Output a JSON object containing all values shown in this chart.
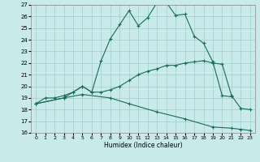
{
  "xlabel": "Humidex (Indice chaleur)",
  "xlim": [
    -0.5,
    23.5
  ],
  "ylim": [
    16,
    27
  ],
  "yticks": [
    16,
    17,
    18,
    19,
    20,
    21,
    22,
    23,
    24,
    25,
    26,
    27
  ],
  "xticks": [
    0,
    1,
    2,
    3,
    4,
    5,
    6,
    7,
    8,
    9,
    10,
    11,
    12,
    13,
    14,
    15,
    16,
    17,
    18,
    19,
    20,
    21,
    22,
    23
  ],
  "bg_color": "#c8eaea",
  "line_color": "#1a6b5a",
  "grid_color": "#a0cccc",
  "s1x": [
    0,
    1,
    2,
    3,
    4,
    5,
    6,
    7,
    8,
    9,
    10,
    11,
    12,
    13,
    14,
    15,
    16,
    17,
    18,
    19,
    20,
    21
  ],
  "s1y": [
    18.5,
    19.0,
    19.0,
    19.2,
    19.5,
    20.0,
    19.5,
    22.2,
    24.1,
    25.3,
    26.5,
    25.2,
    25.9,
    27.2,
    27.2,
    26.1,
    26.2,
    24.3,
    23.7,
    22.1,
    19.2,
    19.1
  ],
  "s2x": [
    0,
    3,
    4,
    5,
    6,
    7,
    8,
    9,
    10,
    11,
    12,
    13,
    14,
    15,
    16,
    17,
    18,
    19,
    20,
    21,
    22,
    23
  ],
  "s2y": [
    18.5,
    19.0,
    19.5,
    20.0,
    19.5,
    19.5,
    19.7,
    20.0,
    20.5,
    21.0,
    21.3,
    21.5,
    21.8,
    21.8,
    22.0,
    22.1,
    22.2,
    22.0,
    21.9,
    19.2,
    18.1,
    18.0
  ],
  "s3x": [
    0,
    3,
    5,
    8,
    10,
    13,
    16,
    19,
    21,
    22,
    23
  ],
  "s3y": [
    18.5,
    19.0,
    19.3,
    19.0,
    18.5,
    17.8,
    17.2,
    16.5,
    16.4,
    16.3,
    16.2
  ],
  "figsize": [
    3.2,
    2.0
  ],
  "dpi": 100
}
